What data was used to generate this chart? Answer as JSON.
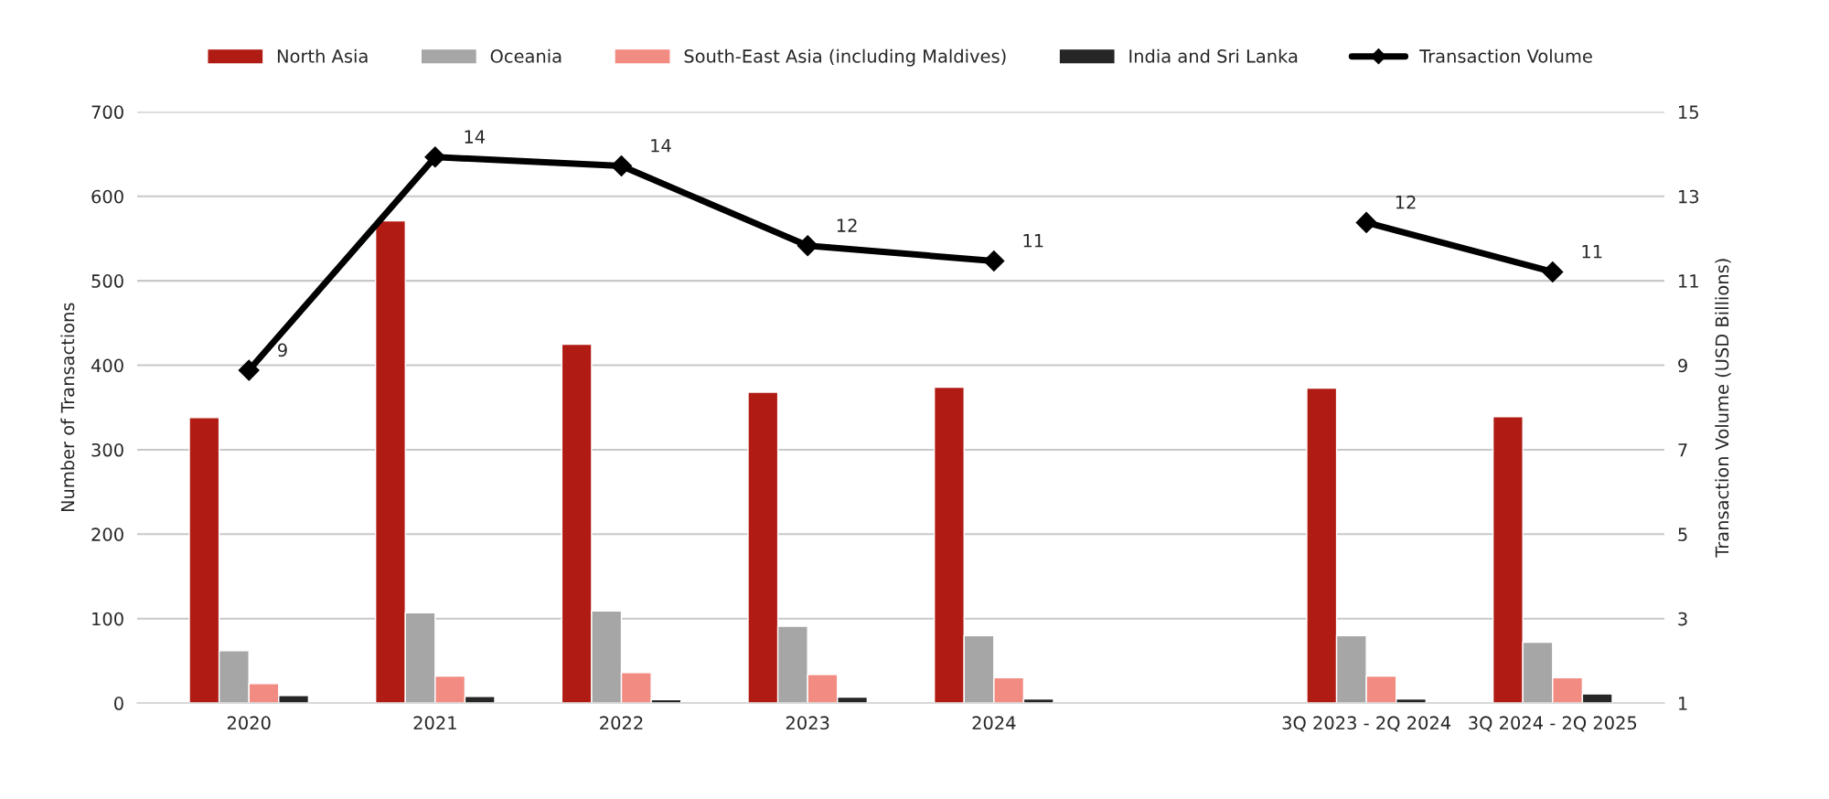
{
  "chart_data": {
    "type": "bar",
    "ylabel": "Number of Transactions",
    "y2label": "Transaction Volume (USD Billions)",
    "categories": [
      "2020",
      "2021",
      "2022",
      "2023",
      "2024",
      null,
      "3Q 2023 - 2Q 2024",
      "3Q 2024 - 2Q 2025"
    ],
    "series": [
      {
        "name": "North Asia",
        "color": "#b01c14",
        "values": [
          338,
          571,
          425,
          368,
          374,
          null,
          373,
          339
        ]
      },
      {
        "name": "Oceania",
        "color": "#a6a6a6",
        "values": [
          62,
          107,
          109,
          91,
          80,
          null,
          80,
          72
        ]
      },
      {
        "name": "South-East Asia (including Maldives)",
        "color": "#f28b82",
        "values": [
          23,
          32,
          36,
          34,
          30,
          null,
          32,
          30
        ]
      },
      {
        "name": "India and Sri Lanka",
        "color": "#262626",
        "values": [
          9,
          8,
          4,
          7,
          5,
          null,
          5,
          11
        ]
      },
      {
        "name": "Transaction Volume",
        "type": "line",
        "axis": "y2",
        "color": "#000000",
        "marker": "diamond",
        "line_style": "solid",
        "values": [
          8.88,
          13.93,
          13.72,
          11.83,
          11.47,
          null,
          12.38,
          11.21
        ],
        "value_labels": [
          "9",
          "14",
          "14",
          "12",
          "11",
          null,
          "12",
          "11"
        ]
      }
    ],
    "ylim": [
      0,
      700
    ],
    "yticks": [
      0,
      100,
      200,
      300,
      400,
      500,
      600,
      700
    ],
    "y2lim": [
      1,
      15
    ],
    "y2ticks": [
      1,
      3,
      5,
      7,
      9,
      11,
      13,
      15
    ],
    "grid": "y",
    "legend": "top"
  }
}
